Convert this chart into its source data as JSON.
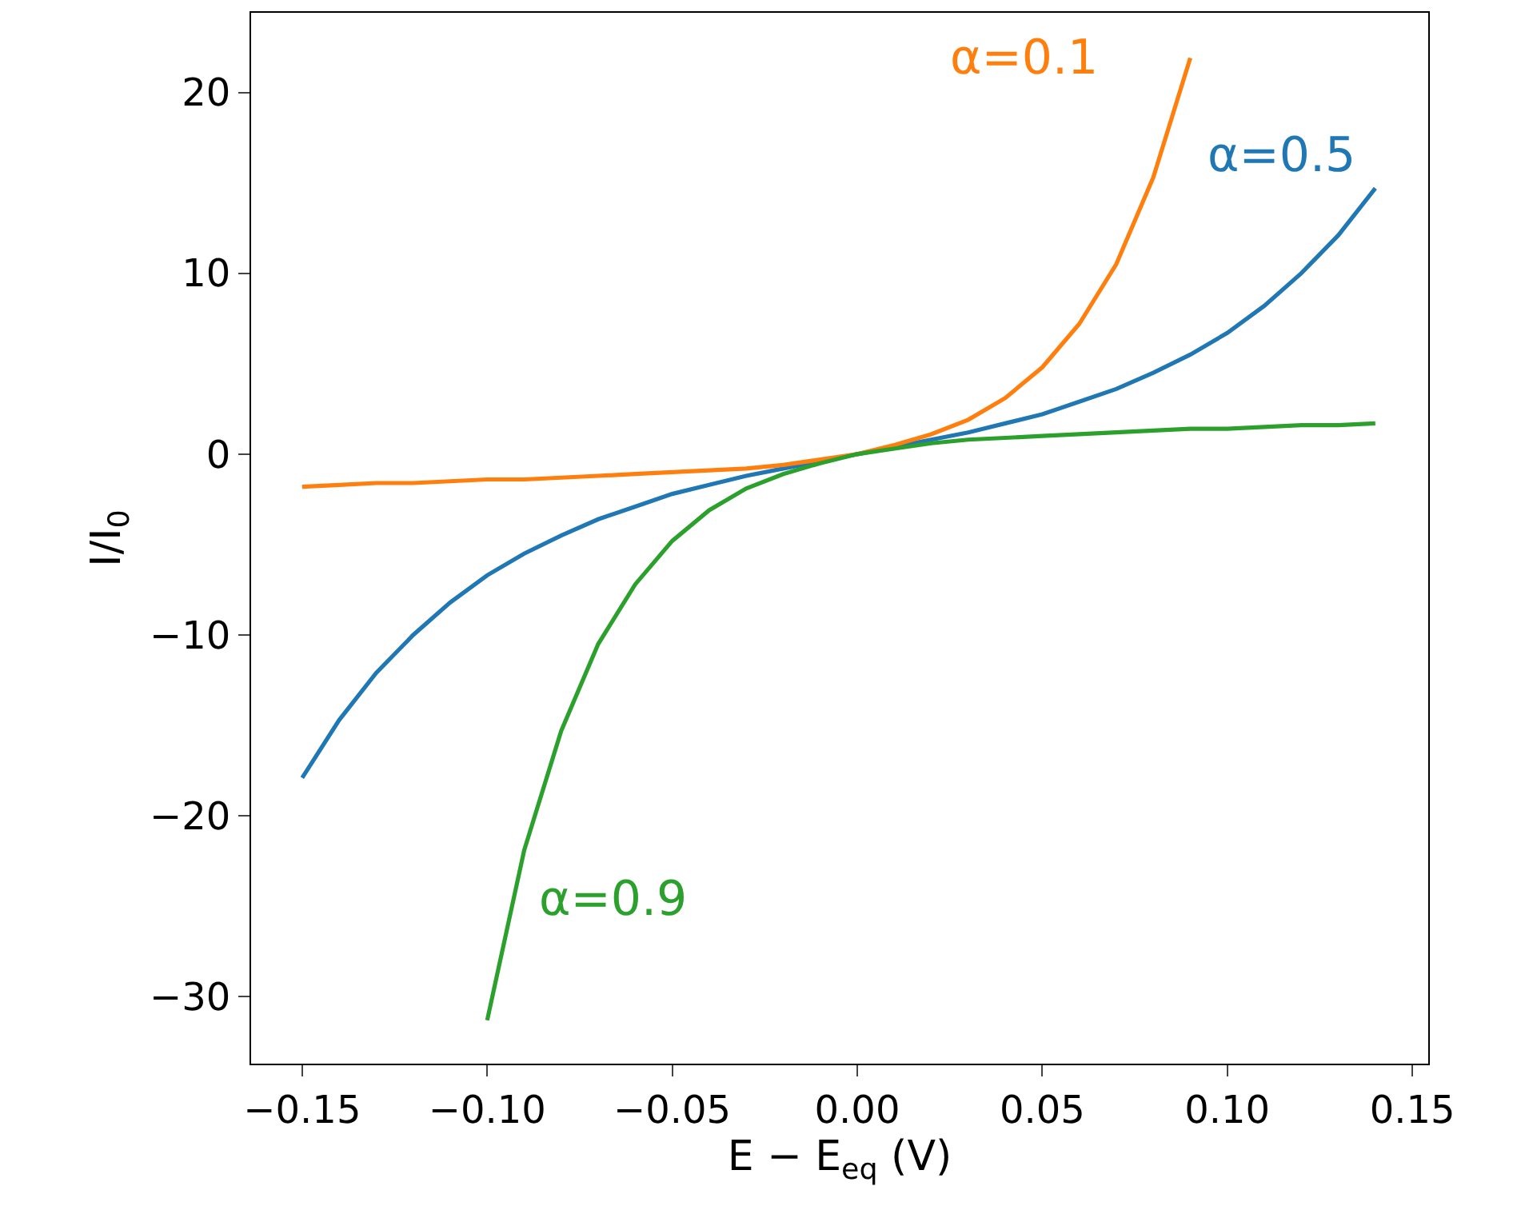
{
  "chart_data": {
    "type": "line",
    "xlabel": "E − E$_{eq}$ (V)",
    "ylabel": "I/I$_{0}$",
    "xlim": [
      -0.1638,
      0.1543
    ],
    "ylim": [
      -33.7,
      24.4
    ],
    "xticks": [
      {
        "value": -0.15,
        "label": "−0.15"
      },
      {
        "value": -0.1,
        "label": "−0.10"
      },
      {
        "value": -0.05,
        "label": "−0.05"
      },
      {
        "value": 0,
        "label": "0.00"
      },
      {
        "value": 0.05,
        "label": "0.05"
      },
      {
        "value": 0.1,
        "label": "0.10"
      },
      {
        "value": 0.15,
        "label": "0.15"
      }
    ],
    "yticks": [
      {
        "value": -30,
        "label": "−30"
      },
      {
        "value": -20,
        "label": "−20"
      },
      {
        "value": -10,
        "label": "−10"
      },
      0,
      10,
      20
    ],
    "grid": false,
    "marker": "none",
    "line_style": "solid",
    "series": [
      {
        "color": "#1f77b4",
        "x": [
          -0.15,
          -0.14,
          -0.13,
          -0.12,
          -0.11,
          -0.1,
          -0.09,
          -0.08,
          -0.07,
          -0.06,
          -0.05,
          -0.04,
          -0.03,
          -0.02,
          -0.01,
          0,
          0.01,
          0.02,
          0.03,
          0.04,
          0.05,
          0.06,
          0.07,
          0.08,
          0.09,
          0.1,
          0.11,
          0.12,
          0.13,
          0.14
        ],
        "values": [
          -17.9,
          -14.7,
          -12.1,
          -10.0,
          -8.2,
          -6.7,
          -5.5,
          -4.5,
          -3.6,
          -2.9,
          -2.2,
          -1.7,
          -1.2,
          -0.8,
          -0.4,
          0,
          0.4,
          0.8,
          1.2,
          1.7,
          2.2,
          2.9,
          3.6,
          4.5,
          5.5,
          6.7,
          8.2,
          10.0,
          12.1,
          14.7
        ]
      },
      {
        "color": "#ff7f0e",
        "x": [
          -0.15,
          -0.14,
          -0.13,
          -0.12,
          -0.11,
          -0.1,
          -0.09,
          -0.08,
          -0.07,
          -0.06,
          -0.05,
          -0.04,
          -0.03,
          -0.02,
          -0.01,
          0,
          0.01,
          0.02,
          0.03,
          0.04,
          0.05,
          0.06,
          0.07,
          0.08,
          0.09
        ],
        "values": [
          -1.8,
          -1.7,
          -1.6,
          -1.6,
          -1.5,
          -1.4,
          -1.4,
          -1.3,
          -1.2,
          -1.1,
          -1.0,
          -0.9,
          -0.8,
          -0.6,
          -0.3,
          0,
          0.5,
          1.1,
          1.9,
          3.1,
          4.8,
          7.2,
          10.5,
          15.3,
          21.9
        ]
      },
      {
        "color": "#2ca02c",
        "x": [
          -0.1,
          -0.09,
          -0.08,
          -0.07,
          -0.06,
          -0.05,
          -0.04,
          -0.03,
          -0.02,
          -0.01,
          0,
          0.01,
          0.02,
          0.03,
          0.04,
          0.05,
          0.06,
          0.07,
          0.08,
          0.09,
          0.1,
          0.11,
          0.12,
          0.13,
          0.14
        ],
        "values": [
          -31.3,
          -21.9,
          -15.3,
          -10.5,
          -7.2,
          -4.8,
          -3.1,
          -1.9,
          -1.1,
          -0.5,
          0,
          0.3,
          0.6,
          0.8,
          0.9,
          1.0,
          1.1,
          1.2,
          1.3,
          1.4,
          1.4,
          1.5,
          1.6,
          1.6,
          1.7
        ]
      }
    ],
    "annotations": [
      {
        "text": "α=0.5",
        "x": 0.14,
        "y": 14.7
      },
      {
        "text": "α=0.1",
        "x": 0.09,
        "y": 21.9
      },
      {
        "text": "α=0.9",
        "x": -0.1,
        "y": -31.3
      }
    ]
  }
}
